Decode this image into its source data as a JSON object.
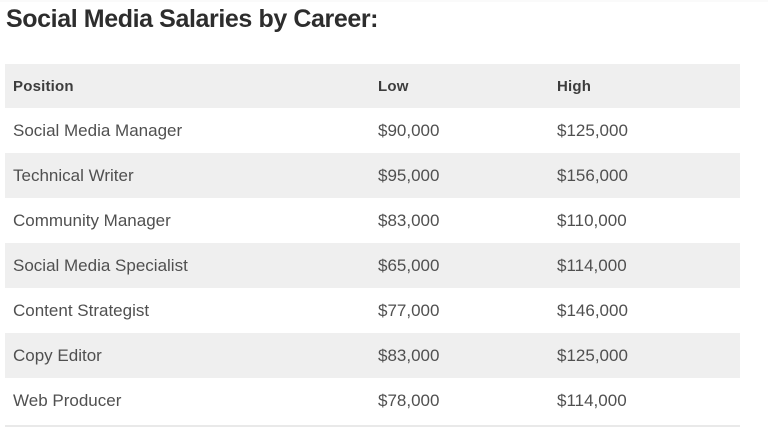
{
  "chart_data": {
    "type": "table",
    "title": "Social Media Salaries by Career:",
    "columns": [
      "Position",
      "Low",
      "High"
    ],
    "rows": [
      {
        "position": "Social Media Manager",
        "low": "$90,000",
        "high": "$125,000"
      },
      {
        "position": "Technical Writer",
        "low": "$95,000",
        "high": "$156,000"
      },
      {
        "position": "Community Manager",
        "low": "$83,000",
        "high": "$110,000"
      },
      {
        "position": "Social Media Specialist",
        "low": "$65,000",
        "high": "$114,000"
      },
      {
        "position": "Content Strategist",
        "low": "$77,000",
        "high": "$146,000"
      },
      {
        "position": "Copy Editor",
        "low": "$83,000",
        "high": "$125,000"
      },
      {
        "position": "Web Producer",
        "low": "$78,000",
        "high": "$114,000"
      }
    ],
    "values_numeric": {
      "low": [
        90000,
        95000,
        83000,
        65000,
        77000,
        83000,
        78000
      ],
      "high": [
        125000,
        156000,
        110000,
        114000,
        146000,
        125000,
        114000
      ]
    },
    "layout": {
      "stripe_style": "alternating rows, gray header",
      "header_bg": "#efefef",
      "stripe_bg": "#efefef",
      "text_color": "#505050",
      "title_color": "#2d2d2d"
    }
  }
}
